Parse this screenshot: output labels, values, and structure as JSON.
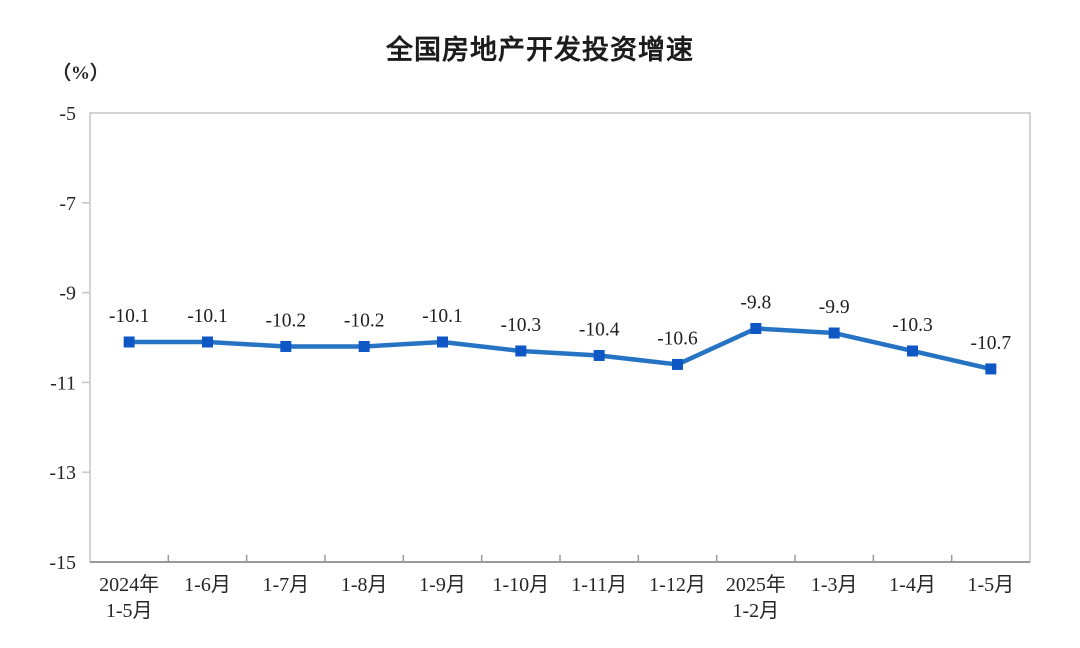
{
  "title": "全国房地产开发投资增速",
  "y_unit_label": "（%）",
  "colors": {
    "line": "#2673c4",
    "marker": "#0f57c4",
    "plot_border": "#c6c6c6",
    "x_axis": "#999999",
    "text": "#262626",
    "title_text": "#1c1c1c"
  },
  "chart_data": {
    "type": "line",
    "title": "全国房地产开发投资增速",
    "ylabel": "（%）",
    "xlabel": "",
    "categories": [
      "2024年\n1-5月",
      "1-6月",
      "1-7月",
      "1-8月",
      "1-9月",
      "1-10月",
      "1-11月",
      "1-12月",
      "2025年\n1-2月",
      "1-3月",
      "1-4月",
      "1-5月"
    ],
    "values": [
      -10.1,
      -10.1,
      -10.2,
      -10.2,
      -10.1,
      -10.3,
      -10.4,
      -10.6,
      -9.8,
      -9.9,
      -10.3,
      -10.7
    ],
    "data_labels": [
      "-10.1",
      "-10.1",
      "-10.2",
      "-10.2",
      "-10.1",
      "-10.3",
      "-10.4",
      "-10.6",
      "-9.8",
      "-9.9",
      "-10.3",
      "-10.7"
    ],
    "ylim": [
      -15,
      -5
    ],
    "y_ticks": [
      -5,
      -7,
      -9,
      -11,
      -13,
      -15
    ],
    "grid": false,
    "legend": "none",
    "marker_shape": "square"
  }
}
